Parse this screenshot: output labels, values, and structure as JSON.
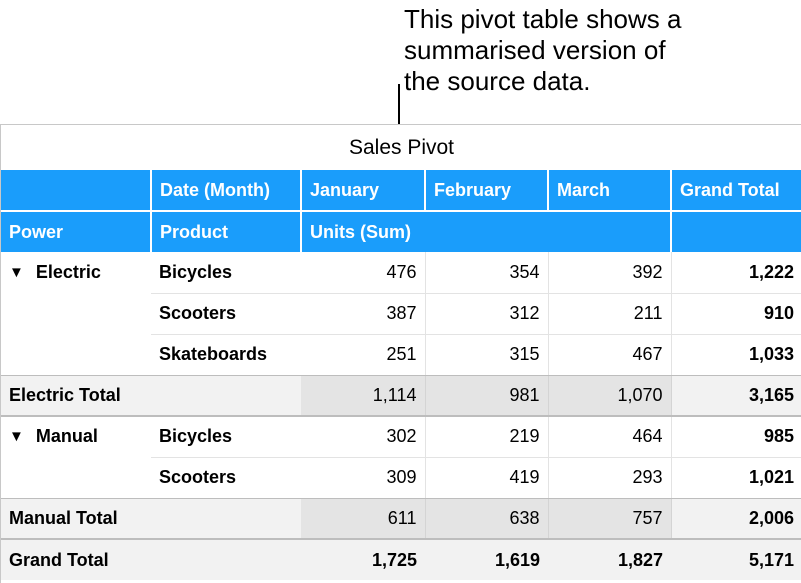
{
  "callout": {
    "lines": [
      "This pivot table shows a",
      "summarised version of",
      "the source data."
    ]
  },
  "pivot": {
    "title": "Sales Pivot",
    "header": {
      "date_label": "Date (Month)",
      "months": [
        "January",
        "February",
        "March"
      ],
      "grand_total": "Grand Total",
      "power": "Power",
      "product": "Product",
      "units": "Units (Sum)"
    },
    "groups": [
      {
        "power": "Electric",
        "expanded_icon": "triangle-down-icon",
        "rows": [
          {
            "product": "Bicycles",
            "values": [
              "476",
              "354",
              "392"
            ],
            "total": "1,222"
          },
          {
            "product": "Scooters",
            "values": [
              "387",
              "312",
              "211"
            ],
            "total": "910"
          },
          {
            "product": "Skateboards",
            "values": [
              "251",
              "315",
              "467"
            ],
            "total": "1,033"
          }
        ],
        "total_label": "Electric Total",
        "totals": [
          "1,114",
          "981",
          "1,070"
        ],
        "grand": "3,165"
      },
      {
        "power": "Manual",
        "expanded_icon": "triangle-down-icon",
        "rows": [
          {
            "product": "Bicycles",
            "values": [
              "302",
              "219",
              "464"
            ],
            "total": "985"
          },
          {
            "product": "Scooters",
            "values": [
              "309",
              "419",
              "293"
            ],
            "total": "1,021"
          }
        ],
        "total_label": "Manual Total",
        "totals": [
          "611",
          "638",
          "757"
        ],
        "grand": "2,006"
      }
    ],
    "grand_total": {
      "label": "Grand Total",
      "values": [
        "1,725",
        "1,619",
        "1,827"
      ],
      "total": "5,171"
    },
    "colors": {
      "header": "#1a9dfb",
      "total_row": "#f2f2f2"
    }
  }
}
